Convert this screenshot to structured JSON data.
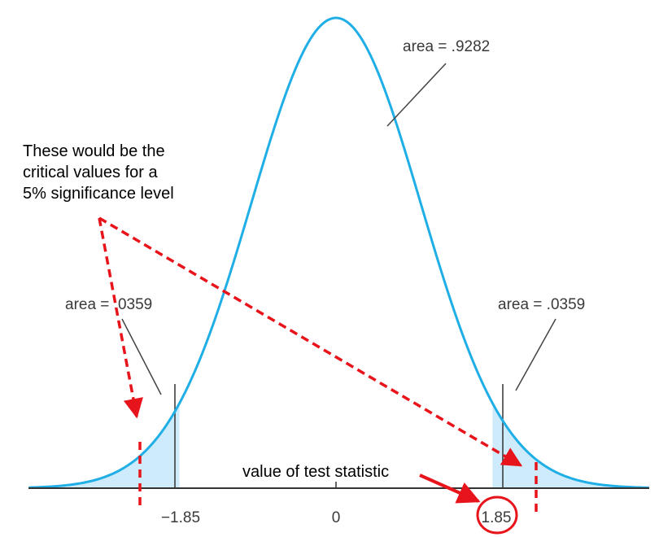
{
  "diagram": {
    "tick_labels": {
      "left": "−1.85",
      "center": "0",
      "right": "1.85"
    },
    "area_labels": {
      "center": "area = .9282",
      "left": "area = .0359",
      "right": "area = .0359"
    },
    "annotation": {
      "lines": [
        "These would be the",
        "critical values for a",
        "5% significance level"
      ]
    },
    "test_statistic_label": "value of test statistic",
    "colors": {
      "curve": "#1FAEE6",
      "tail_fill": "#CDEBFA",
      "axis": "#333333",
      "callout_line": "#444444",
      "annotation_red": "#E8141B"
    }
  }
}
